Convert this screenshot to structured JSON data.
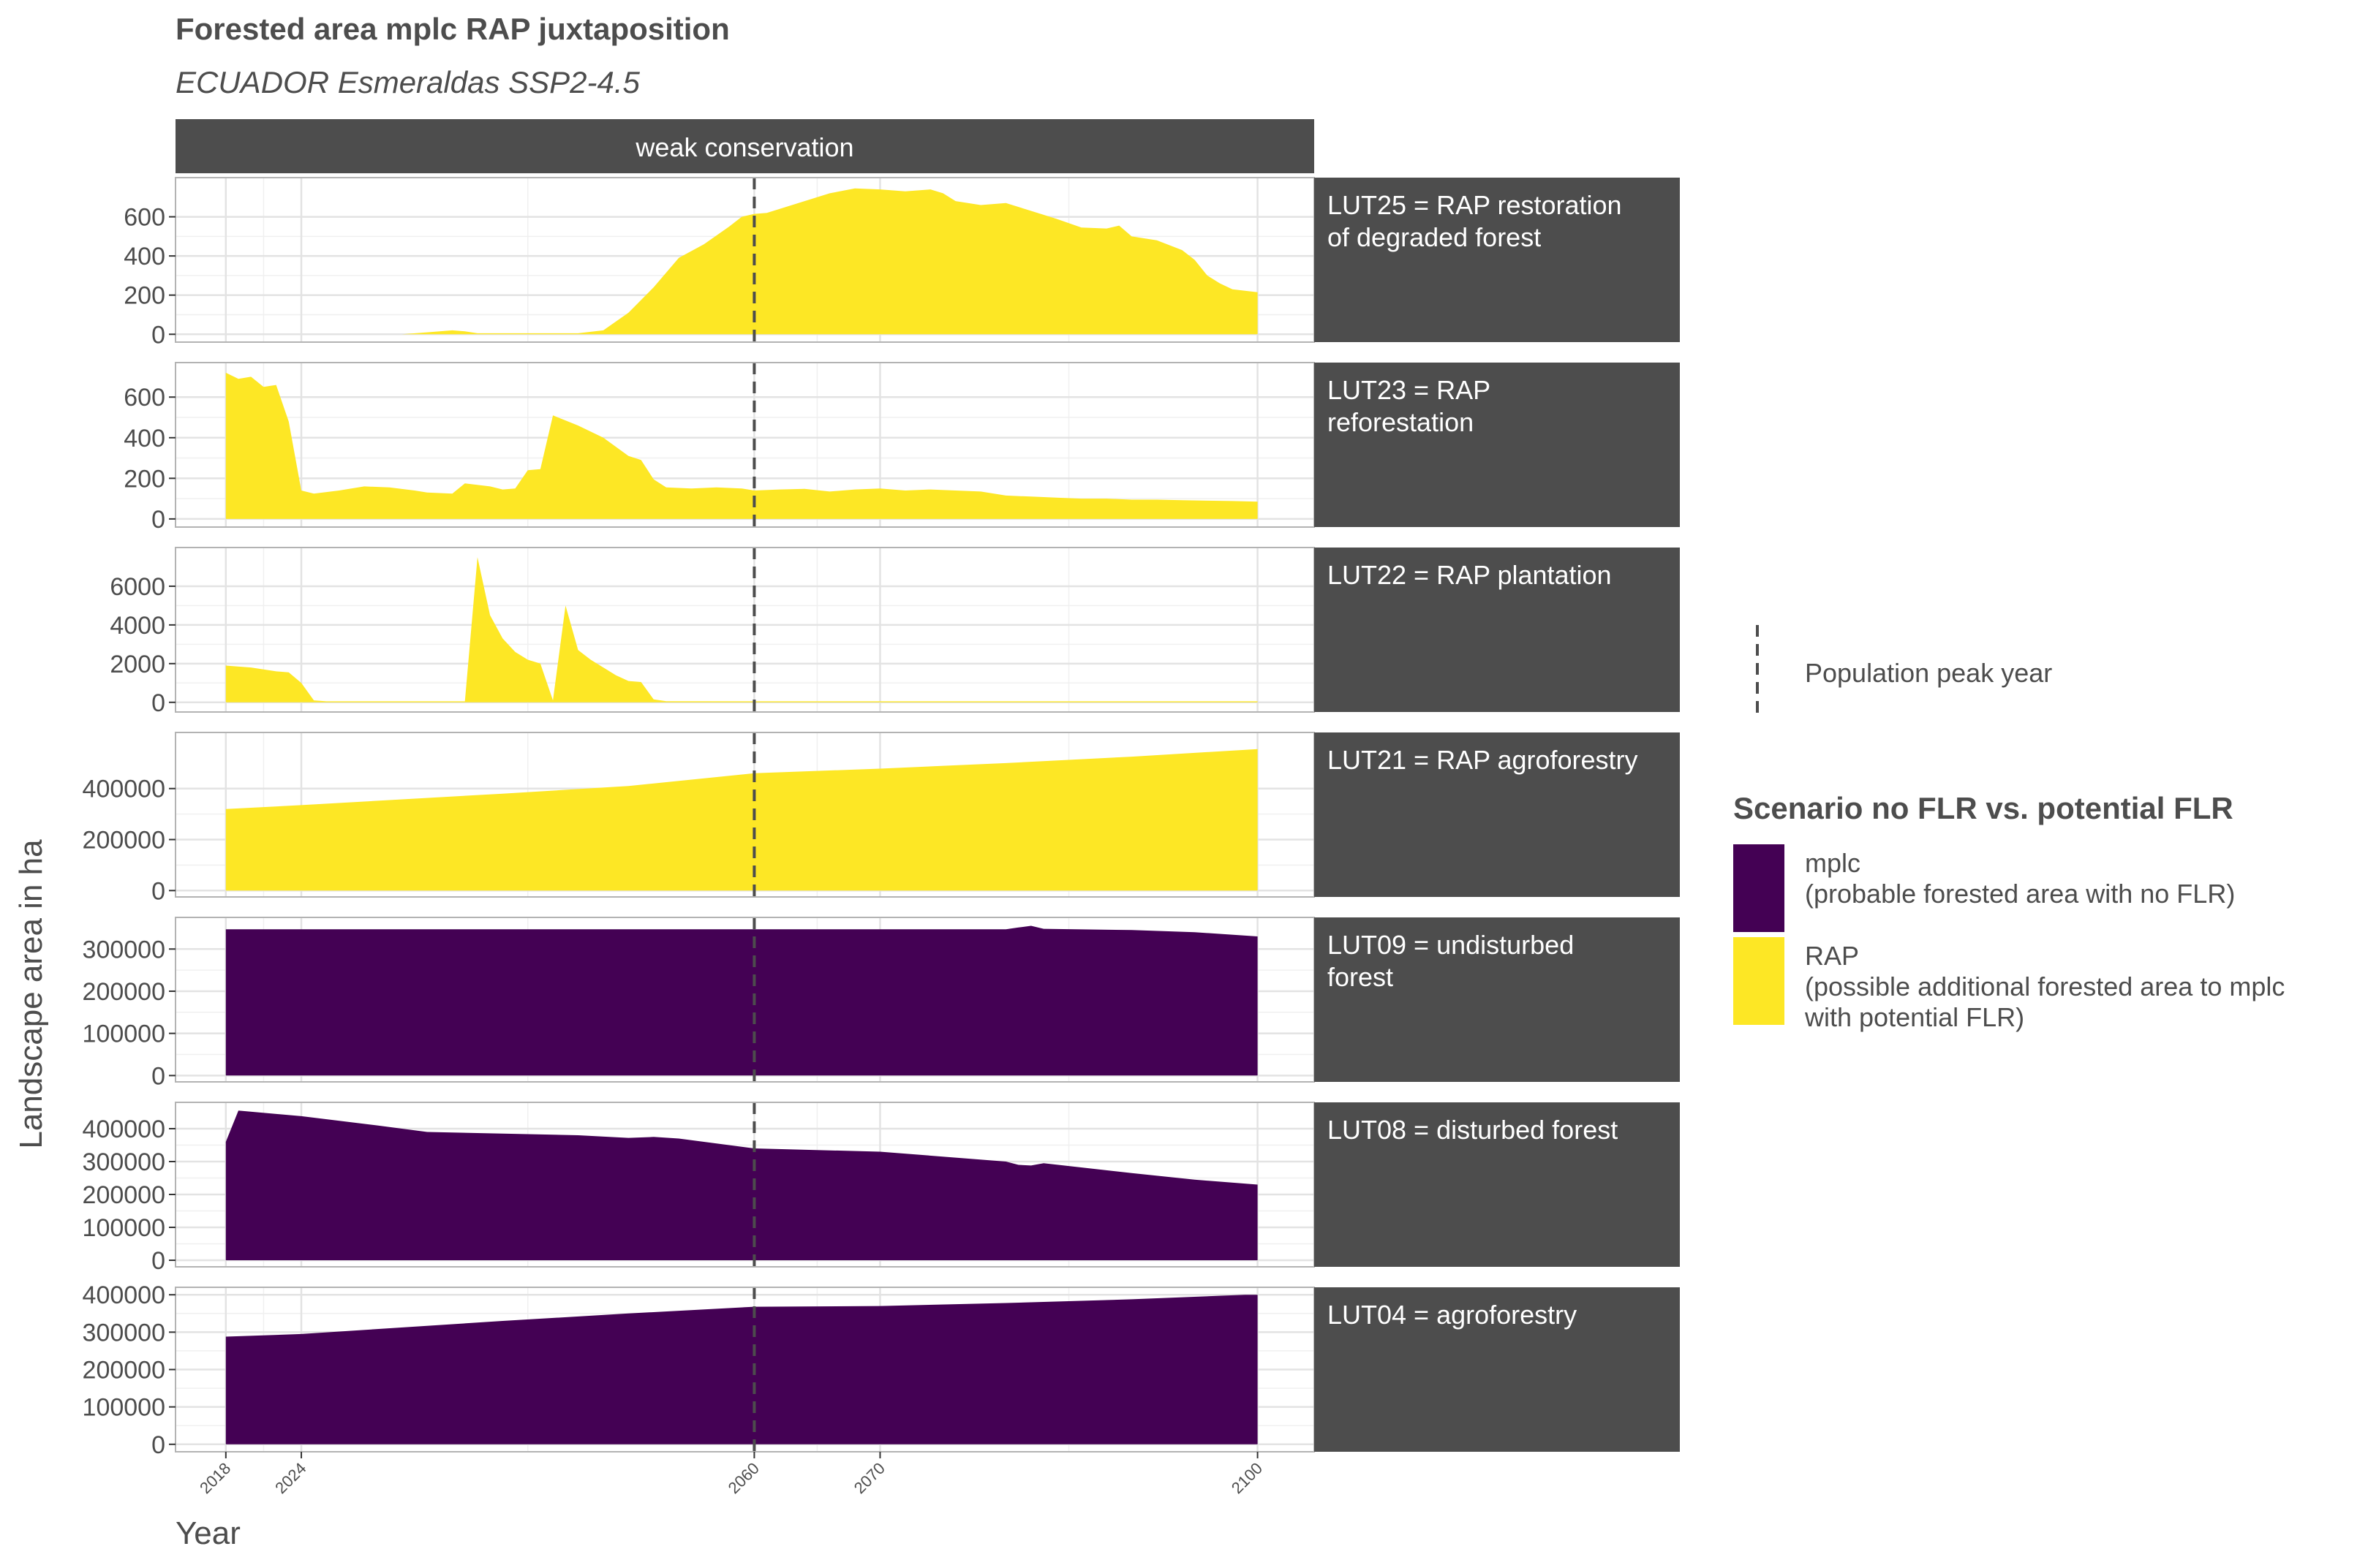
{
  "title": "Forested area mplc RAP juxtaposition",
  "subtitle": "ECUADOR Esmeraldas SSP2-4.5",
  "facet_column_label": "weak conservation",
  "colors": {
    "mplc": "#440154",
    "rap": "#FDE725",
    "strip": "#4d4d4d",
    "grid": "#e3e3e3",
    "axis_text": "#4d4d4d"
  },
  "legend": {
    "line_label": "Population peak year",
    "title": "Scenario no FLR vs. potential FLR",
    "items": [
      {
        "key": "mplc",
        "line1": "mplc",
        "line2": "(probable forested area with no FLR)",
        "line3": "",
        "color": "#440154"
      },
      {
        "key": "rap",
        "line1": "RAP",
        "line2": "(possible additional forested area to mplc",
        "line3": "with potential FLR)",
        "color": "#FDE725"
      }
    ]
  },
  "chart_data": {
    "type": "area",
    "xlabel": "Year",
    "ylabel": "Landscape area in ha",
    "x_ticks": [
      2018,
      2024,
      2060,
      2070,
      2100
    ],
    "xlim": [
      2014,
      2104.5
    ],
    "population_peak_year": 2060,
    "panels": [
      {
        "label_lines": [
          "LUT25 = RAP restoration",
          "of degraded forest"
        ],
        "series": "RAP",
        "ylim": [
          -40,
          800
        ],
        "y_ticks": [
          0,
          200,
          400,
          600
        ],
        "points": [
          [
            2018,
            0
          ],
          [
            2030,
            0
          ],
          [
            2032,
            0
          ],
          [
            2034,
            10
          ],
          [
            2036,
            20
          ],
          [
            2037,
            15
          ],
          [
            2038,
            5
          ],
          [
            2040,
            5
          ],
          [
            2046,
            5
          ],
          [
            2048,
            20
          ],
          [
            2050,
            110
          ],
          [
            2052,
            240
          ],
          [
            2054,
            390
          ],
          [
            2056,
            460
          ],
          [
            2058,
            550
          ],
          [
            2059,
            600
          ],
          [
            2060,
            615
          ],
          [
            2061,
            620
          ],
          [
            2062,
            640
          ],
          [
            2064,
            680
          ],
          [
            2066,
            720
          ],
          [
            2068,
            745
          ],
          [
            2070,
            740
          ],
          [
            2072,
            730
          ],
          [
            2074,
            740
          ],
          [
            2075,
            720
          ],
          [
            2076,
            680
          ],
          [
            2078,
            660
          ],
          [
            2080,
            670
          ],
          [
            2082,
            630
          ],
          [
            2084,
            590
          ],
          [
            2086,
            545
          ],
          [
            2088,
            540
          ],
          [
            2089,
            555
          ],
          [
            2090,
            500
          ],
          [
            2092,
            480
          ],
          [
            2094,
            430
          ],
          [
            2095,
            380
          ],
          [
            2096,
            300
          ],
          [
            2097,
            260
          ],
          [
            2098,
            230
          ],
          [
            2100,
            215
          ]
        ]
      },
      {
        "label_lines": [
          "LUT23 = RAP",
          "reforestation"
        ],
        "series": "RAP",
        "ylim": [
          -40,
          770
        ],
        "y_ticks": [
          0,
          200,
          400,
          600
        ],
        "points": [
          [
            2018,
            720
          ],
          [
            2019,
            690
          ],
          [
            2020,
            700
          ],
          [
            2021,
            650
          ],
          [
            2022,
            660
          ],
          [
            2023,
            480
          ],
          [
            2024,
            140
          ],
          [
            2025,
            125
          ],
          [
            2027,
            140
          ],
          [
            2029,
            160
          ],
          [
            2031,
            155
          ],
          [
            2033,
            140
          ],
          [
            2034,
            130
          ],
          [
            2036,
            125
          ],
          [
            2037,
            175
          ],
          [
            2039,
            160
          ],
          [
            2040,
            145
          ],
          [
            2041,
            150
          ],
          [
            2042,
            240
          ],
          [
            2043,
            245
          ],
          [
            2044,
            510
          ],
          [
            2046,
            460
          ],
          [
            2048,
            400
          ],
          [
            2050,
            310
          ],
          [
            2051,
            290
          ],
          [
            2052,
            195
          ],
          [
            2053,
            155
          ],
          [
            2055,
            150
          ],
          [
            2057,
            155
          ],
          [
            2059,
            150
          ],
          [
            2060,
            140
          ],
          [
            2062,
            145
          ],
          [
            2064,
            148
          ],
          [
            2066,
            135
          ],
          [
            2068,
            145
          ],
          [
            2070,
            150
          ],
          [
            2072,
            140
          ],
          [
            2074,
            145
          ],
          [
            2076,
            140
          ],
          [
            2078,
            135
          ],
          [
            2080,
            115
          ],
          [
            2082,
            110
          ],
          [
            2084,
            105
          ],
          [
            2086,
            100
          ],
          [
            2088,
            100
          ],
          [
            2090,
            95
          ],
          [
            2092,
            95
          ],
          [
            2094,
            92
          ],
          [
            2096,
            90
          ],
          [
            2098,
            88
          ],
          [
            2100,
            85
          ]
        ]
      },
      {
        "label_lines": [
          "LUT22 = RAP plantation"
        ],
        "series": "RAP",
        "ylim": [
          -500,
          8000
        ],
        "y_ticks": [
          0,
          2000,
          4000,
          6000
        ],
        "points": [
          [
            2018,
            1900
          ],
          [
            2020,
            1800
          ],
          [
            2022,
            1600
          ],
          [
            2023,
            1550
          ],
          [
            2024,
            1000
          ],
          [
            2025,
            100
          ],
          [
            2026,
            50
          ],
          [
            2030,
            50
          ],
          [
            2035,
            50
          ],
          [
            2037,
            50
          ],
          [
            2038,
            7500
          ],
          [
            2039,
            4500
          ],
          [
            2040,
            3300
          ],
          [
            2041,
            2600
          ],
          [
            2042,
            2200
          ],
          [
            2043,
            2000
          ],
          [
            2044,
            100
          ],
          [
            2045,
            5000
          ],
          [
            2046,
            2700
          ],
          [
            2047,
            2200
          ],
          [
            2048,
            1800
          ],
          [
            2049,
            1400
          ],
          [
            2050,
            1100
          ],
          [
            2051,
            1050
          ],
          [
            2052,
            150
          ],
          [
            2053,
            60
          ],
          [
            2060,
            50
          ],
          [
            2070,
            50
          ],
          [
            2080,
            50
          ],
          [
            2090,
            50
          ],
          [
            2100,
            50
          ]
        ]
      },
      {
        "label_lines": [
          "LUT21 = RAP agroforestry"
        ],
        "series": "RAP",
        "ylim": [
          -25000,
          620000
        ],
        "y_ticks": [
          0,
          200000,
          400000
        ],
        "points": [
          [
            2018,
            320000
          ],
          [
            2024,
            335000
          ],
          [
            2040,
            380000
          ],
          [
            2050,
            410000
          ],
          [
            2060,
            460000
          ],
          [
            2070,
            478000
          ],
          [
            2080,
            500000
          ],
          [
            2090,
            525000
          ],
          [
            2100,
            555000
          ]
        ]
      },
      {
        "label_lines": [
          "LUT09 = undisturbed",
          "forest"
        ],
        "series": "mplc",
        "ylim": [
          -15000,
          375000
        ],
        "y_ticks": [
          0,
          100000,
          200000,
          300000
        ],
        "points": [
          [
            2018,
            347000
          ],
          [
            2040,
            347000
          ],
          [
            2060,
            347000
          ],
          [
            2080,
            347000
          ],
          [
            2081,
            351000
          ],
          [
            2082,
            355000
          ],
          [
            2083,
            348000
          ],
          [
            2090,
            345000
          ],
          [
            2095,
            340000
          ],
          [
            2100,
            330000
          ]
        ]
      },
      {
        "label_lines": [
          "LUT08 = disturbed forest"
        ],
        "series": "mplc",
        "ylim": [
          -20000,
          480000
        ],
        "y_ticks": [
          0,
          100000,
          200000,
          300000,
          400000
        ],
        "points": [
          [
            2018,
            360000
          ],
          [
            2019,
            455000
          ],
          [
            2024,
            438000
          ],
          [
            2030,
            410000
          ],
          [
            2034,
            390000
          ],
          [
            2040,
            385000
          ],
          [
            2046,
            380000
          ],
          [
            2050,
            372000
          ],
          [
            2052,
            375000
          ],
          [
            2054,
            370000
          ],
          [
            2060,
            340000
          ],
          [
            2070,
            330000
          ],
          [
            2080,
            300000
          ],
          [
            2081,
            290000
          ],
          [
            2082,
            288000
          ],
          [
            2083,
            295000
          ],
          [
            2090,
            265000
          ],
          [
            2095,
            245000
          ],
          [
            2100,
            230000
          ]
        ]
      },
      {
        "label_lines": [
          "LUT04 = agroforestry"
        ],
        "series": "mplc",
        "ylim": [
          -20000,
          420000
        ],
        "y_ticks": [
          0,
          100000,
          200000,
          300000,
          400000
        ],
        "points": [
          [
            2018,
            288000
          ],
          [
            2024,
            295000
          ],
          [
            2040,
            330000
          ],
          [
            2050,
            350000
          ],
          [
            2060,
            368000
          ],
          [
            2070,
            370000
          ],
          [
            2080,
            378000
          ],
          [
            2090,
            388000
          ],
          [
            2099,
            400000
          ],
          [
            2100,
            400000
          ]
        ]
      }
    ]
  }
}
